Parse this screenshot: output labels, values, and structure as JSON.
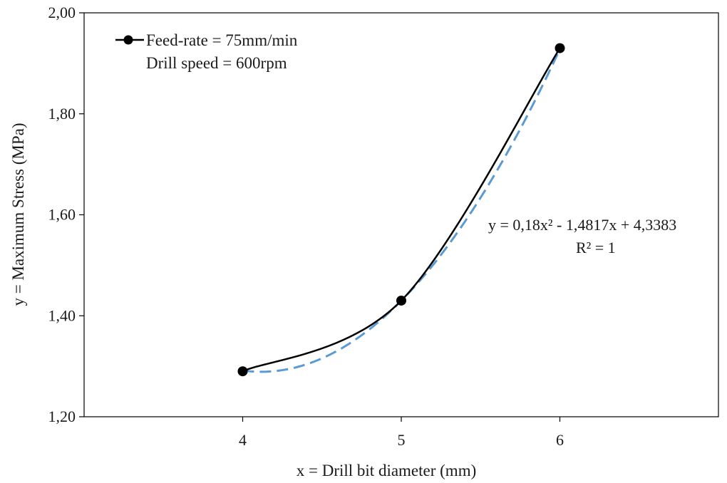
{
  "chart_data": {
    "type": "line",
    "x": [
      4,
      5,
      6
    ],
    "series": [
      {
        "name": "Feed-rate = 75mm/min",
        "values": [
          1.29,
          1.43,
          1.93
        ],
        "color": "#000000",
        "marker": "circle",
        "smooth": true
      }
    ],
    "legend": {
      "entries": [
        "Feed-rate = 75mm/min",
        "Drill speed = 600rpm"
      ],
      "position": "top-left"
    },
    "trendline": {
      "type": "polynomial",
      "order": 2,
      "coefficients": [
        0.18,
        -1.4817,
        4.3383
      ],
      "color": "#5b9bd5",
      "style": "dashed",
      "equation_label": "y = 0,18x² - 1,4817x + 4,3383",
      "r2_label": "R² = 1"
    },
    "xlabel": "x = Drill bit diameter (mm)",
    "ylabel": "y = Maximum Stress (MPa)",
    "xlim": [
      3,
      7
    ],
    "ylim": [
      1.2,
      2.0
    ],
    "xticks": [
      4,
      5,
      6
    ],
    "xtick_labels": [
      "4",
      "5",
      "6"
    ],
    "yticks": [
      1.2,
      1.4,
      1.6,
      1.8,
      2.0
    ],
    "ytick_labels": [
      "1,20",
      "1,40",
      "1,60",
      "1,80",
      "2,00"
    ],
    "grid": false
  }
}
